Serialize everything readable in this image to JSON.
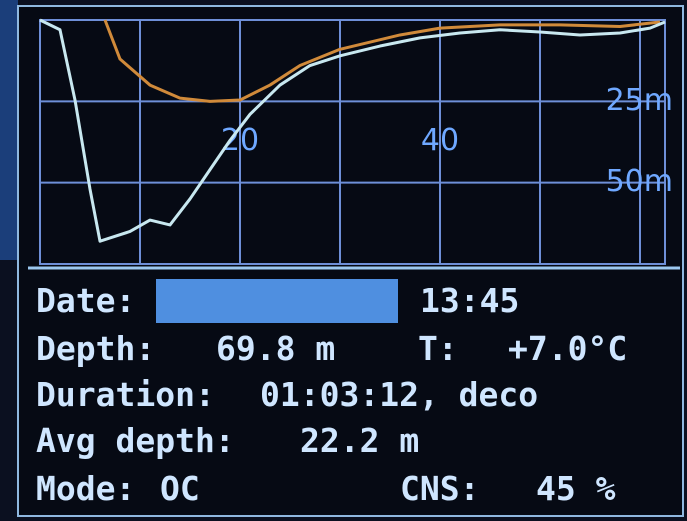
{
  "chart_data": {
    "type": "line",
    "xlim": [
      0,
      62.5
    ],
    "ylim": [
      0,
      75
    ],
    "invert_y": true,
    "xticks": [
      20,
      40
    ],
    "yticks": [
      {
        "value": 25,
        "label": "25m"
      },
      {
        "value": 50,
        "label": "50m"
      }
    ],
    "xgrid": [
      10,
      20,
      30,
      40,
      50,
      60
    ],
    "ygrid": [
      25,
      50
    ],
    "grid": true,
    "series": [
      {
        "color": "#c8e8f0",
        "x": [
          0,
          2,
          3.5,
          5,
          6,
          7,
          9,
          11,
          13,
          15,
          17,
          19,
          21,
          24,
          27,
          30,
          34,
          38,
          42,
          46,
          50,
          54,
          58,
          61,
          62.5
        ],
        "values": [
          0,
          3,
          24.6,
          52,
          68,
          67,
          65,
          61.5,
          63,
          55,
          46,
          37,
          29,
          20,
          14,
          11,
          8,
          5.5,
          4,
          3,
          3.7,
          4.6,
          4,
          2.5,
          0.6
        ]
      },
      {
        "color": "#d08a3a",
        "x": [
          6.5,
          8,
          11,
          14,
          17,
          20,
          23,
          26,
          30,
          36,
          40,
          46,
          52,
          58,
          62
        ],
        "values": [
          0,
          12,
          20,
          24,
          25,
          24.6,
          20,
          14,
          9,
          4.6,
          2.5,
          1.5,
          1.5,
          2,
          0.6
        ]
      }
    ]
  },
  "info": {
    "date_label": "Date:",
    "time": "13:45",
    "depth_label": "Depth:",
    "depth": "69.8 m",
    "temp_label": "T:",
    "temp": "+7.0°C",
    "duration_label": "Duration:",
    "duration": "01:03:12, deco",
    "avg_label": "Avg depth:",
    "avg": "22.2 m",
    "mode_label": "Mode:",
    "mode": "OC",
    "cns_label": "CNS:",
    "cns": "45 %"
  }
}
